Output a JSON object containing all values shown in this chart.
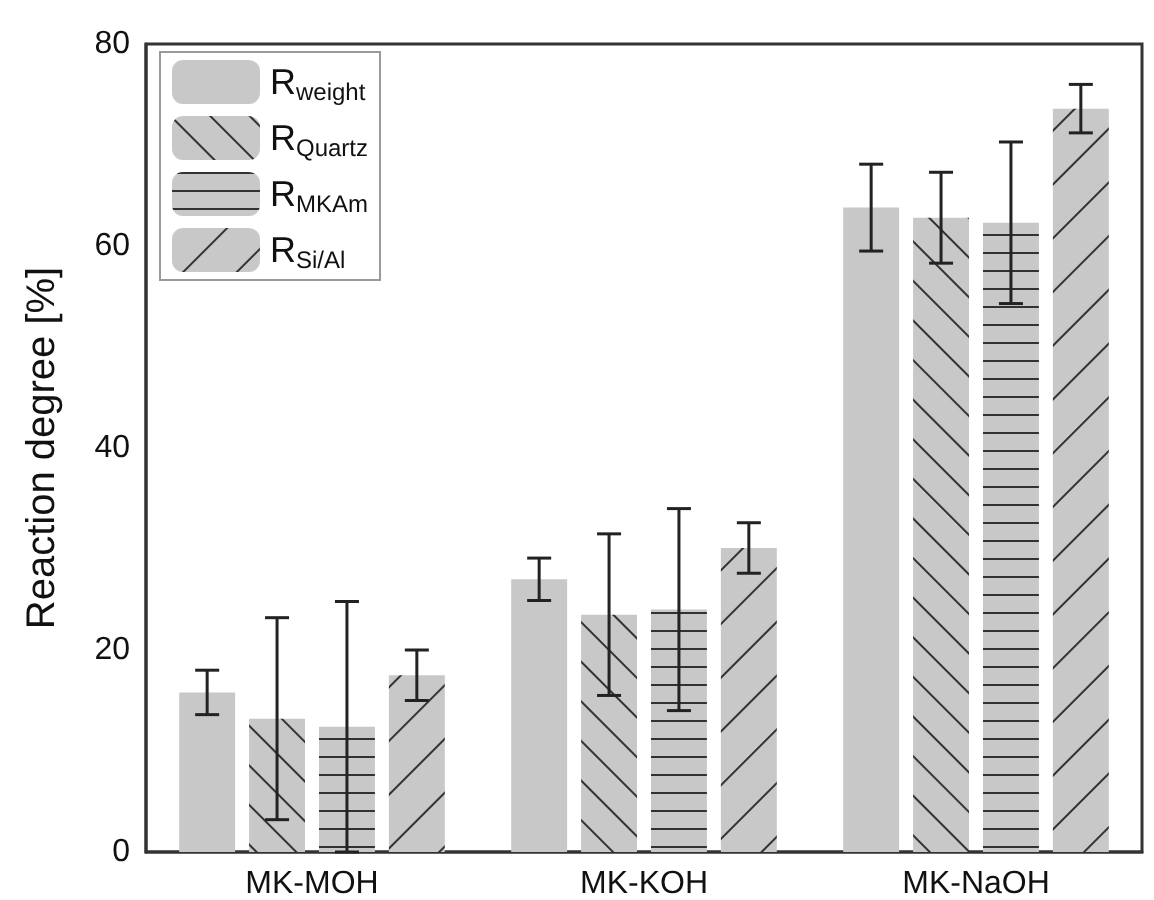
{
  "chart_data": {
    "type": "bar",
    "ylabel": "Reaction degree [%]",
    "categories": [
      "MK-MOH",
      "MK-KOH",
      "MK-NaOH"
    ],
    "series": [
      {
        "name": "R$_{weight}$",
        "color": "#c8c8c8",
        "values": [
          15.8,
          27.0,
          63.8
        ],
        "errors": [
          2.2,
          2.1,
          4.3
        ]
      },
      {
        "name": "R$_{Quartz}$",
        "color": "#c8c8c8",
        "values": [
          13.2,
          23.5,
          62.8
        ],
        "errors": [
          10.0,
          8.0,
          4.5
        ]
      },
      {
        "name": "R$_{MKAm}$",
        "color": "#c8c8c8",
        "values": [
          12.4,
          24.0,
          62.3
        ],
        "errors": [
          12.4,
          10.0,
          8.0
        ]
      },
      {
        "name": "R$_{Si/Al}$",
        "color": "#c8c8c8",
        "values": [
          17.5,
          30.1,
          73.6
        ],
        "errors": [
          2.5,
          2.5,
          2.4
        ]
      }
    ],
    "ylim": [
      0,
      80
    ],
    "yticks": [
      0,
      20,
      40,
      60,
      80
    ],
    "grid": false,
    "legend": "top left"
  }
}
